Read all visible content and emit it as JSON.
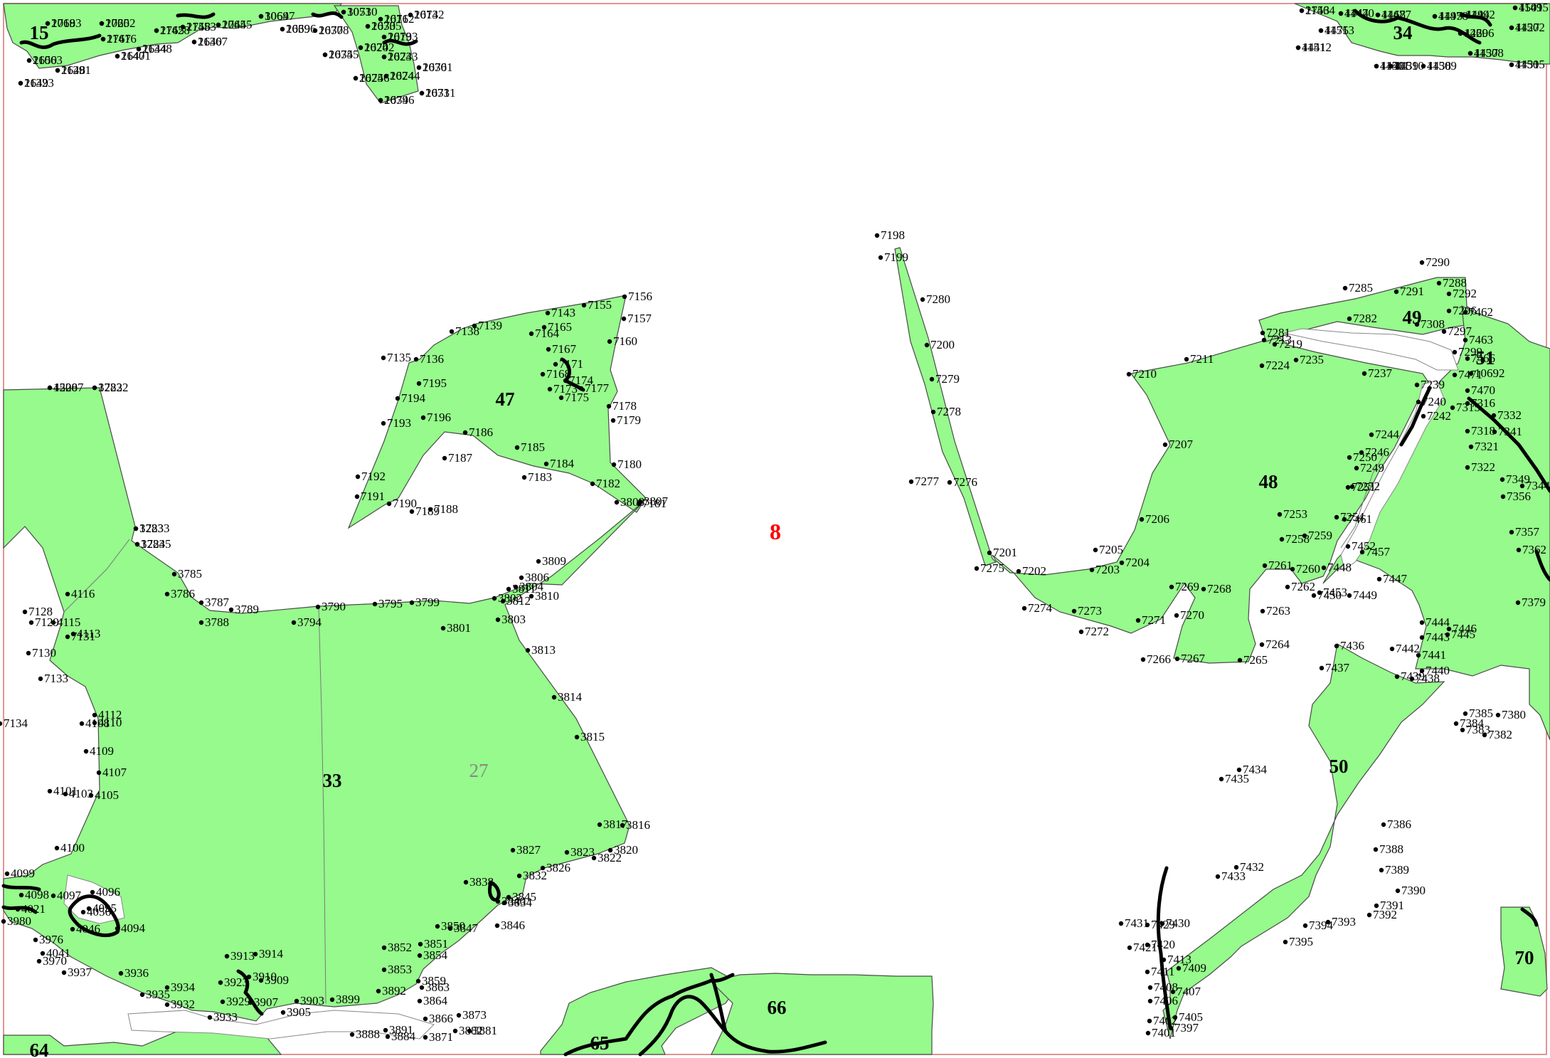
{
  "map": {
    "block_label": "8",
    "parcel_labels": [
      {
        "id": "parcel-15",
        "text": "15"
      },
      {
        "id": "parcel-34",
        "text": "34"
      },
      {
        "id": "parcel-47",
        "text": "47"
      },
      {
        "id": "parcel-33",
        "text": "33"
      },
      {
        "id": "parcel-27",
        "text": "27"
      },
      {
        "id": "parcel-48",
        "text": "48"
      },
      {
        "id": "parcel-49",
        "text": "49"
      },
      {
        "id": "parcel-51",
        "text": "51"
      },
      {
        "id": "parcel-50",
        "text": "50"
      },
      {
        "id": "parcel-65",
        "text": "65"
      },
      {
        "id": "parcel-66",
        "text": "66"
      },
      {
        "id": "parcel-70",
        "text": "70"
      },
      {
        "id": "parcel-64",
        "text": "64"
      }
    ],
    "point_labels": [
      "2718",
      "2720",
      "2745",
      "3069",
      "2639",
      "2637",
      "3053",
      "2616",
      "2614",
      "2619",
      "2630",
      "2620",
      "2623",
      "2635",
      "2625",
      "2624",
      "2630",
      "2631",
      "2634",
      "2650",
      "2648",
      "2649",
      "2644",
      "2640",
      "2647",
      "2767",
      "2765",
      "2758",
      "2753",
      "4444",
      "4468",
      "4495",
      "4494",
      "4501",
      "4427",
      "4431",
      "4437",
      "4438",
      "4439",
      "4440",
      "4441",
      "4475",
      "4469",
      "4508",
      "3782",
      "3783",
      "3784",
      "3785",
      "3786",
      "3787",
      "3788",
      "3789",
      "3790",
      "3794",
      "3795",
      "3799",
      "3801",
      "3802",
      "3803",
      "3804",
      "3806",
      "3807",
      "3808",
      "3809",
      "3810",
      "3811",
      "3812",
      "3813",
      "3814",
      "3815",
      "3816",
      "3817",
      "3820",
      "3822",
      "3823",
      "3826",
      "3827",
      "3832",
      "3834",
      "3838",
      "3840",
      "3845",
      "3846",
      "3847",
      "3850",
      "3851",
      "3852",
      "3853",
      "3854",
      "3859",
      "3863",
      "3864",
      "3866",
      "3871",
      "3873",
      "3881",
      "3882",
      "3884",
      "3888",
      "3891",
      "3892",
      "3899",
      "3903",
      "3905",
      "3907",
      "3909",
      "3910",
      "3913",
      "3914",
      "3923",
      "3929",
      "3932",
      "3933",
      "3934",
      "3935",
      "3936",
      "3937",
      "3970",
      "3976",
      "3980",
      "4021",
      "4041",
      "4046",
      "4056",
      "4094",
      "4095",
      "4096",
      "4097",
      "4098",
      "4099",
      "4100",
      "4101",
      "4103",
      "4105",
      "4107",
      "4108",
      "4109",
      "4110",
      "4112",
      "4113",
      "4115",
      "4116",
      "7128",
      "7129",
      "7130",
      "7131",
      "7133",
      "7134",
      "7135",
      "7136",
      "7138",
      "7139",
      "7143",
      "7155",
      "7156",
      "7157",
      "7160",
      "7164",
      "7165",
      "7167",
      "7168",
      "7171",
      "7173",
      "7174",
      "7175",
      "7177",
      "7178",
      "7179",
      "7180",
      "7181",
      "7182",
      "7183",
      "7184",
      "7185",
      "7186",
      "7187",
      "7188",
      "7189",
      "7190",
      "7191",
      "7192",
      "7193",
      "7194",
      "7195",
      "7196",
      "7198",
      "7199",
      "7200",
      "7201",
      "7202",
      "7203",
      "7204",
      "7205",
      "7206",
      "7207",
      "7210",
      "7211",
      "7213",
      "7219",
      "7224",
      "7235",
      "7237",
      "7239",
      "7240",
      "7242",
      "7244",
      "7246",
      "7249",
      "7250",
      "7251",
      "7252",
      "7253",
      "7254",
      "7258",
      "7259",
      "7260",
      "7261",
      "7262",
      "7263",
      "7264",
      "7265",
      "7266",
      "7267",
      "7268",
      "7269",
      "7270",
      "7271",
      "7272",
      "7273",
      "7274",
      "7275",
      "7276",
      "7277",
      "7278",
      "7279",
      "7280",
      "7281",
      "7282",
      "7285",
      "7288",
      "7290",
      "7291",
      "7292",
      "7296",
      "7297",
      "7299",
      "7308",
      "7315",
      "7316",
      "7318",
      "7321",
      "7322",
      "7332",
      "7341",
      "7344",
      "7349",
      "7356",
      "7357",
      "7362",
      "7379",
      "7380",
      "7382",
      "7383",
      "7384",
      "7385",
      "7386",
      "7388",
      "7389",
      "7390",
      "7391",
      "7392",
      "7393",
      "7394",
      "7395",
      "7397",
      "7401",
      "7402",
      "7405",
      "7406",
      "7407",
      "7408",
      "7409",
      "7411",
      "7413",
      "7420",
      "7421",
      "7429",
      "7430",
      "7431",
      "7432",
      "7433",
      "7434",
      "7435",
      "7436",
      "7437",
      "7438",
      "7439",
      "7440",
      "7441",
      "7442",
      "7443",
      "7444",
      "7445",
      "7446",
      "7447",
      "7448",
      "7449",
      "7450",
      "7452",
      "7453",
      "7457",
      "7461",
      "7462",
      "7463",
      "7466",
      "7470",
      "7471",
      "10692",
      "10693",
      "10652",
      "10645",
      "10647",
      "10696",
      "10708",
      "10710",
      "10712",
      "10732",
      "10733",
      "10735",
      "10742",
      "10743",
      "10745",
      "10746",
      "10744",
      "10761",
      "10731",
      "10796",
      "11063",
      "11291",
      "11323",
      "11348",
      "11367",
      "11401",
      "11416",
      "11428",
      "11453",
      "11464",
      "11470",
      "11477",
      "11478",
      "11492",
      "11495",
      "11502",
      "11505",
      "11508",
      "11509",
      "11510",
      "11511",
      "11512",
      "11513",
      "12206",
      "12207",
      "12232",
      "12233",
      "12235"
    ]
  }
}
